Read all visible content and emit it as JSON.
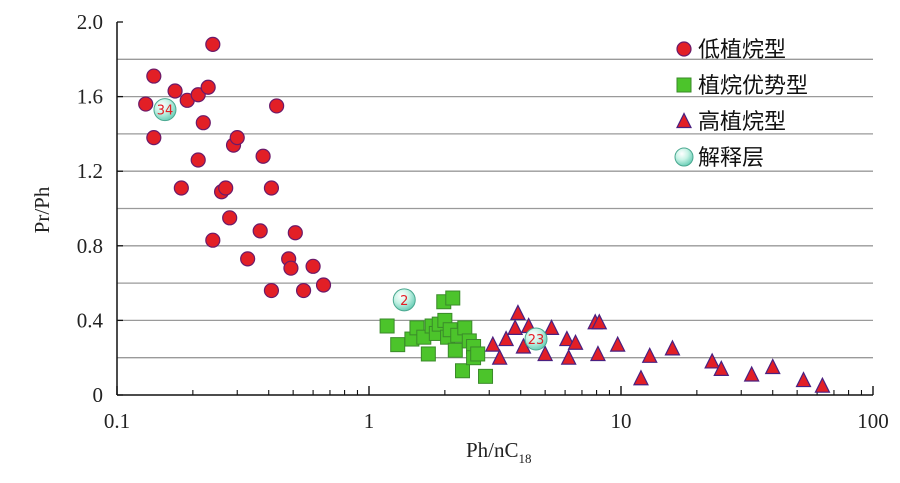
{
  "chart_data": {
    "type": "scatter",
    "x_scale": "log",
    "xlim": [
      0.1,
      100
    ],
    "ylim": [
      0,
      2.0
    ],
    "x_ticks": [
      "0.1",
      "1",
      "10",
      "100"
    ],
    "y_ticks": [
      "0",
      "0.4",
      "0.8",
      "1.2",
      "1.6",
      "2.0"
    ],
    "xlabel_main": "Ph/nC",
    "xlabel_sub": "18",
    "ylabel": "Pr/Ph",
    "grid": "horizontal",
    "legend_position": "top-right",
    "series": [
      {
        "name": "低植烷型",
        "marker": "circle",
        "color": "#e21f26",
        "points": [
          [
            0.13,
            1.56
          ],
          [
            0.14,
            1.71
          ],
          [
            0.14,
            1.38
          ],
          [
            0.17,
            1.63
          ],
          [
            0.18,
            1.11
          ],
          [
            0.19,
            1.58
          ],
          [
            0.21,
            1.26
          ],
          [
            0.21,
            1.61
          ],
          [
            0.22,
            1.46
          ],
          [
            0.23,
            1.65
          ],
          [
            0.24,
            1.88
          ],
          [
            0.24,
            0.83
          ],
          [
            0.26,
            1.09
          ],
          [
            0.27,
            1.11
          ],
          [
            0.28,
            0.95
          ],
          [
            0.29,
            1.34
          ],
          [
            0.3,
            1.38
          ],
          [
            0.33,
            0.73
          ],
          [
            0.37,
            0.88
          ],
          [
            0.38,
            1.28
          ],
          [
            0.41,
            0.56
          ],
          [
            0.41,
            1.11
          ],
          [
            0.43,
            1.55
          ],
          [
            0.48,
            0.73
          ],
          [
            0.49,
            0.68
          ],
          [
            0.51,
            0.87
          ],
          [
            0.55,
            0.56
          ],
          [
            0.6,
            0.69
          ],
          [
            0.66,
            0.59
          ]
        ]
      },
      {
        "name": "植烷优势型",
        "marker": "square",
        "color": "#4cc42b",
        "points": [
          [
            1.18,
            0.37
          ],
          [
            1.3,
            0.27
          ],
          [
            1.48,
            0.3
          ],
          [
            1.55,
            0.36
          ],
          [
            1.65,
            0.31
          ],
          [
            1.72,
            0.22
          ],
          [
            1.78,
            0.37
          ],
          [
            1.85,
            0.33
          ],
          [
            1.9,
            0.38
          ],
          [
            1.98,
            0.5
          ],
          [
            2.0,
            0.4
          ],
          [
            2.05,
            0.31
          ],
          [
            2.1,
            0.35
          ],
          [
            2.15,
            0.52
          ],
          [
            2.2,
            0.24
          ],
          [
            2.25,
            0.32
          ],
          [
            2.35,
            0.13
          ],
          [
            2.4,
            0.36
          ],
          [
            2.5,
            0.29
          ],
          [
            2.6,
            0.26
          ],
          [
            2.6,
            0.2
          ],
          [
            2.7,
            0.22
          ],
          [
            2.9,
            0.1
          ]
        ]
      },
      {
        "name": "高植烷型",
        "marker": "triangle",
        "color": "#e21f26",
        "points": [
          [
            3.1,
            0.27
          ],
          [
            3.3,
            0.2
          ],
          [
            3.5,
            0.3
          ],
          [
            3.8,
            0.36
          ],
          [
            3.9,
            0.44
          ],
          [
            4.1,
            0.26
          ],
          [
            4.3,
            0.37
          ],
          [
            5.0,
            0.22
          ],
          [
            5.3,
            0.36
          ],
          [
            6.1,
            0.3
          ],
          [
            6.2,
            0.2
          ],
          [
            6.6,
            0.28
          ],
          [
            7.9,
            0.39
          ],
          [
            8.1,
            0.22
          ],
          [
            8.2,
            0.39
          ],
          [
            9.7,
            0.27
          ],
          [
            12.0,
            0.09
          ],
          [
            13.0,
            0.21
          ],
          [
            16.0,
            0.25
          ],
          [
            23.0,
            0.18
          ],
          [
            25.0,
            0.14
          ],
          [
            33.0,
            0.11
          ],
          [
            40.0,
            0.15
          ],
          [
            53.0,
            0.08
          ],
          [
            63.0,
            0.05
          ]
        ]
      },
      {
        "name": "解释层",
        "marker": "sphere",
        "color": "#a8ecd9",
        "points": [
          {
            "x": 0.155,
            "y": 1.53,
            "label": "34"
          },
          {
            "x": 1.38,
            "y": 0.51,
            "label": "2"
          },
          {
            "x": 4.6,
            "y": 0.3,
            "label": "23"
          }
        ]
      }
    ]
  }
}
